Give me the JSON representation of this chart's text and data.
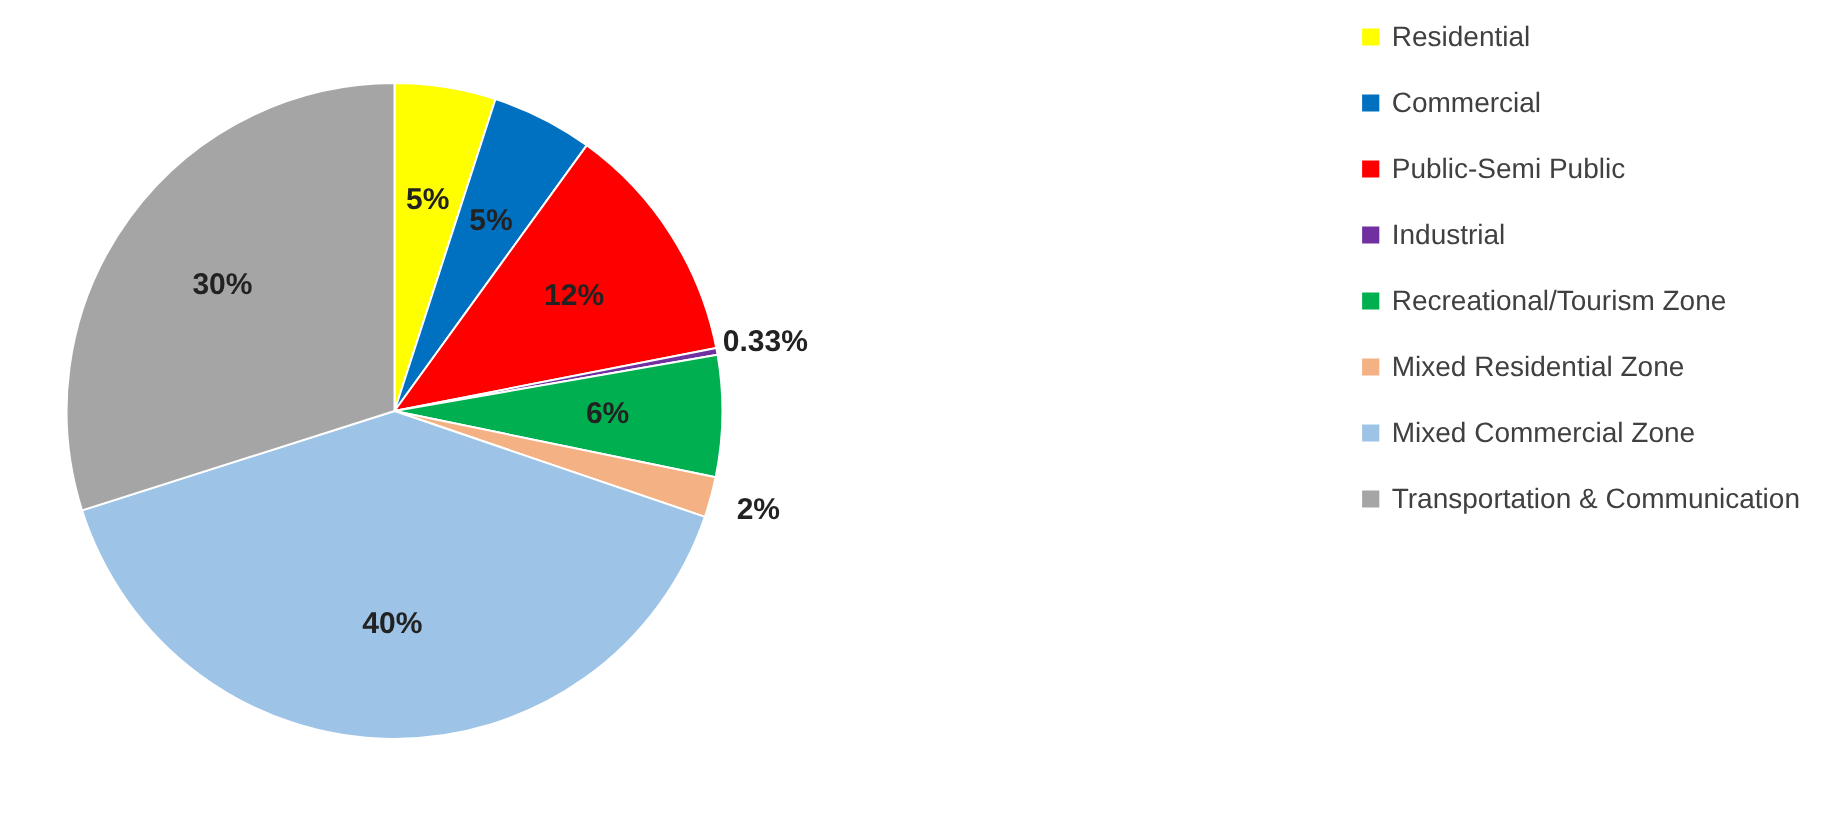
{
  "chart_data": {
    "type": "pie",
    "categories": [
      "Residential",
      "Commercial",
      "Public-Semi Public",
      "Industrial",
      "Recreational/Tourism Zone",
      "Mixed Residential Zone",
      "Mixed Commercial Zone",
      "Transportation & Communication"
    ],
    "values": [
      5,
      5,
      12,
      0.33,
      6,
      2,
      40,
      30
    ],
    "colors": [
      "#ffff00",
      "#0070c0",
      "#ff0000",
      "#7030a0",
      "#00b050",
      "#f4b183",
      "#9dc3e6",
      "#a5a5a5"
    ],
    "value_labels": [
      "5%",
      "5%",
      "12%",
      "0.33%",
      "6%",
      "2%",
      "40%",
      "30%"
    ],
    "legend": "right"
  }
}
